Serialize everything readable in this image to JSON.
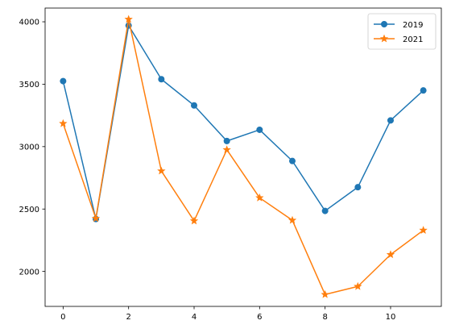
{
  "chart_data": {
    "type": "line",
    "title": "",
    "xlabel": "",
    "ylabel": "",
    "x": [
      0,
      1,
      2,
      3,
      4,
      5,
      6,
      7,
      8,
      9,
      10,
      11
    ],
    "xlim": [
      -0.55,
      11.55
    ],
    "ylim": [
      1720,
      4110
    ],
    "xticks": [
      0,
      2,
      4,
      6,
      8,
      10
    ],
    "yticks": [
      2000,
      2500,
      3000,
      3500,
      4000
    ],
    "grid": false,
    "legend_position": "top-right",
    "series": [
      {
        "name": "2019",
        "color": "#1f77b4",
        "marker": "circle",
        "values": [
          3525,
          2420,
          3970,
          3540,
          3330,
          3045,
          3135,
          2885,
          2485,
          2675,
          3210,
          3450
        ]
      },
      {
        "name": "2021",
        "color": "#ff7f0e",
        "marker": "star",
        "values": [
          3185,
          2425,
          4020,
          2805,
          2405,
          2975,
          2590,
          2410,
          1815,
          1880,
          2135,
          2330
        ]
      }
    ]
  }
}
